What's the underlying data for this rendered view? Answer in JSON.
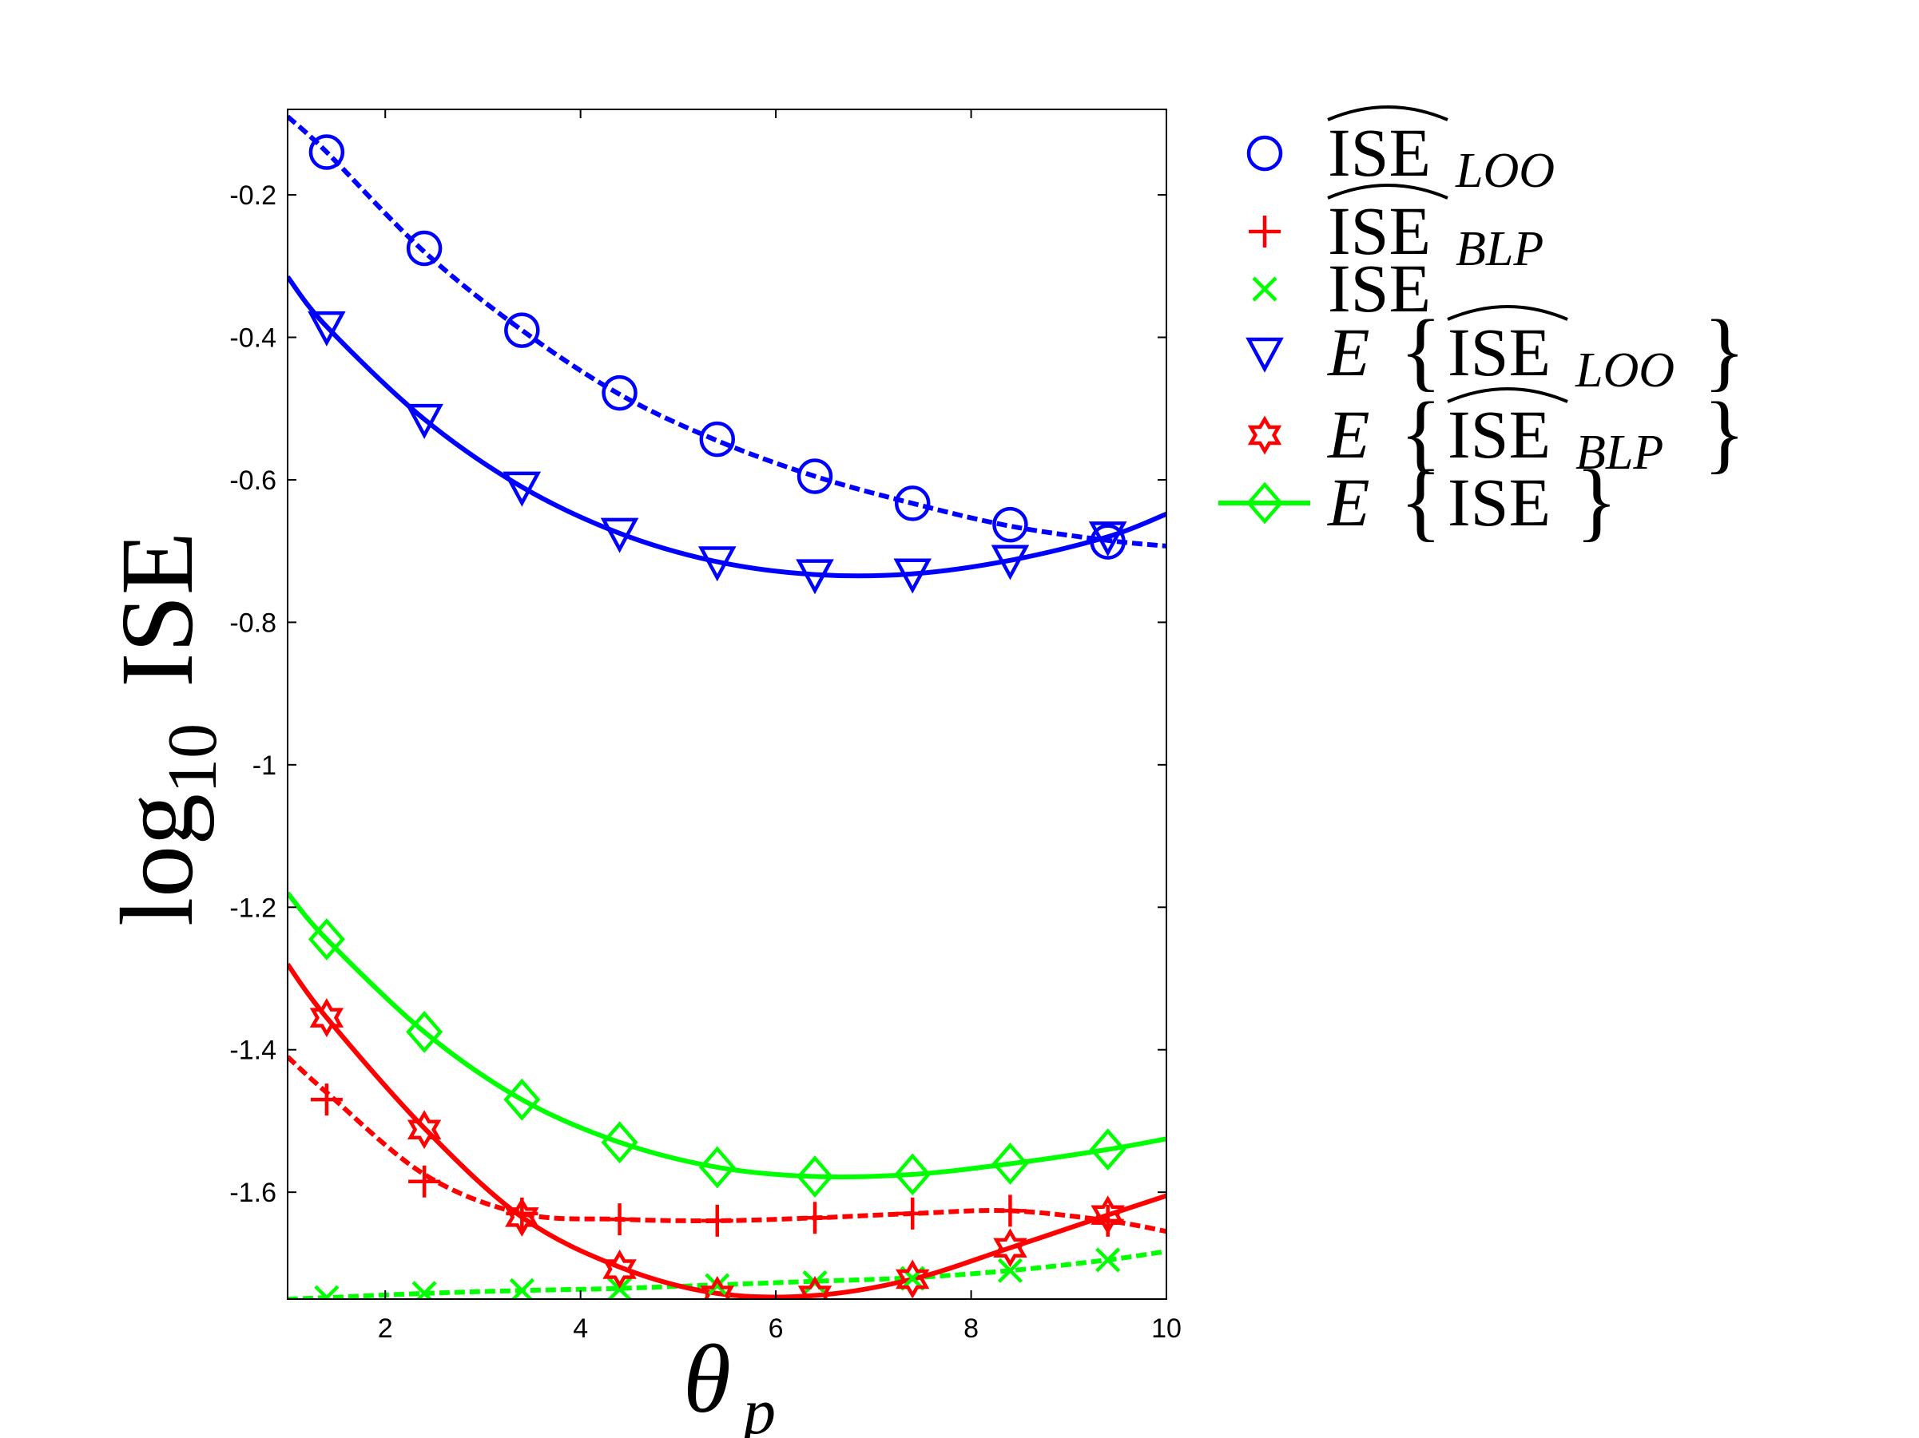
{
  "chart_data": {
    "type": "line",
    "xlabel": "θ",
    "xlabel_sub": "p",
    "ylabel_prefix": "log",
    "ylabel_sub": "10",
    "ylabel_main": "ISE",
    "xlim": [
      1,
      10
    ],
    "ylim": [
      -1.75,
      -0.08
    ],
    "xticks": [
      2,
      4,
      6,
      8,
      10
    ],
    "xtick_labels": [
      "2",
      "4",
      "6",
      "8",
      "10"
    ],
    "yticks": [
      -0.2,
      -0.4,
      -0.6,
      -0.8,
      -1,
      -1.2,
      -1.4,
      -1.6
    ],
    "ytick_labels": [
      "-0.2",
      "-0.4",
      "-0.6",
      "-0.8",
      "-1",
      "-1.2",
      "-1.4",
      "-1.6"
    ],
    "marker_x": [
      1.4,
      2.4,
      3.4,
      4.4,
      5.4,
      6.4,
      7.4,
      8.4,
      9.4
    ],
    "series": [
      {
        "name": "ISE_LOO_hat",
        "color": "#0000ff",
        "marker": "circle",
        "dash": true,
        "legend": {
          "prefix": "",
          "main": "ISE",
          "hat": true,
          "sub": "LOO",
          "brace": false
        },
        "curve": [
          [
            1,
            -0.09
          ],
          [
            1.4,
            -0.14
          ],
          [
            2.4,
            -0.28
          ],
          [
            3.4,
            -0.39
          ],
          [
            4.4,
            -0.48
          ],
          [
            5.4,
            -0.545
          ],
          [
            6.4,
            -0.595
          ],
          [
            7.4,
            -0.633
          ],
          [
            8.4,
            -0.665
          ],
          [
            9.4,
            -0.685
          ],
          [
            10,
            -0.693
          ]
        ],
        "values": [
          -0.14,
          -0.275,
          -0.39,
          -0.478,
          -0.543,
          -0.595,
          -0.633,
          -0.663,
          -0.687
        ]
      },
      {
        "name": "ISE_BLP_hat",
        "color": "#ff0000",
        "marker": "plus",
        "dash": true,
        "legend": {
          "prefix": "",
          "main": "ISE",
          "hat": true,
          "sub": "BLP",
          "brace": false
        },
        "curve": [
          [
            1,
            -1.41
          ],
          [
            1.4,
            -1.46
          ],
          [
            2.4,
            -1.575
          ],
          [
            3.4,
            -1.63
          ],
          [
            4.4,
            -1.638
          ],
          [
            5.4,
            -1.64
          ],
          [
            6.4,
            -1.636
          ],
          [
            7.4,
            -1.63
          ],
          [
            8.4,
            -1.626
          ],
          [
            9.4,
            -1.64
          ],
          [
            10,
            -1.655
          ]
        ],
        "values": [
          -1.47,
          -1.585,
          -1.63,
          -1.638,
          -1.64,
          -1.636,
          -1.63,
          -1.626,
          -1.64
        ]
      },
      {
        "name": "ISE",
        "color": "#00ff00",
        "marker": "x",
        "dash": true,
        "legend": {
          "prefix": "",
          "main": "ISE",
          "hat": false,
          "sub": "",
          "brace": false
        },
        "curve": [
          [
            1,
            -1.75
          ],
          [
            1.4,
            -1.748
          ],
          [
            2.4,
            -1.742
          ],
          [
            3.4,
            -1.738
          ],
          [
            4.4,
            -1.735
          ],
          [
            5.4,
            -1.73
          ],
          [
            6.4,
            -1.725
          ],
          [
            7.4,
            -1.72
          ],
          [
            8.4,
            -1.71
          ],
          [
            9.4,
            -1.695
          ],
          [
            10,
            -1.683
          ]
        ],
        "values": [
          -1.748,
          -1.742,
          -1.738,
          -1.736,
          -1.731,
          -1.727,
          -1.721,
          -1.71,
          -1.695
        ]
      },
      {
        "name": "E_ISE_LOO_hat",
        "color": "#0000ff",
        "marker": "triangle-down",
        "dash": false,
        "legend": {
          "prefix": "E",
          "main": "ISE",
          "hat": true,
          "sub": "LOO",
          "brace": true
        },
        "curve": [
          [
            1,
            -0.315
          ],
          [
            1.4,
            -0.385
          ],
          [
            2.4,
            -0.515
          ],
          [
            3.4,
            -0.61
          ],
          [
            4.4,
            -0.675
          ],
          [
            5.4,
            -0.715
          ],
          [
            6.4,
            -0.733
          ],
          [
            7.4,
            -0.732
          ],
          [
            8.4,
            -0.713
          ],
          [
            9.4,
            -0.68
          ],
          [
            10,
            -0.648
          ]
        ],
        "values": [
          -0.385,
          -0.515,
          -0.61,
          -0.675,
          -0.715,
          -0.733,
          -0.732,
          -0.713,
          -0.68
        ]
      },
      {
        "name": "E_ISE_BLP_hat",
        "color": "#ff0000",
        "marker": "hexagram",
        "dash": false,
        "legend": {
          "prefix": "E",
          "main": "ISE",
          "hat": true,
          "sub": "BLP",
          "brace": true
        },
        "curve": [
          [
            1,
            -1.28
          ],
          [
            1.4,
            -1.355
          ],
          [
            2.4,
            -1.51
          ],
          [
            3.4,
            -1.635
          ],
          [
            4.4,
            -1.705
          ],
          [
            5.4,
            -1.742
          ],
          [
            6.4,
            -1.745
          ],
          [
            7.4,
            -1.722
          ],
          [
            8.4,
            -1.678
          ],
          [
            9.4,
            -1.632
          ],
          [
            10,
            -1.605
          ]
        ],
        "values": [
          -1.355,
          -1.512,
          -1.635,
          -1.708,
          -1.745,
          -1.745,
          -1.722,
          -1.678,
          -1.632
        ]
      },
      {
        "name": "E_ISE",
        "color": "#00ff00",
        "marker": "diamond",
        "dash": false,
        "legend": {
          "prefix": "E",
          "main": "ISE",
          "hat": false,
          "sub": "",
          "brace": true
        },
        "curve": [
          [
            1,
            -1.18
          ],
          [
            1.4,
            -1.245
          ],
          [
            2.4,
            -1.375
          ],
          [
            3.4,
            -1.47
          ],
          [
            4.4,
            -1.53
          ],
          [
            5.4,
            -1.565
          ],
          [
            6.4,
            -1.578
          ],
          [
            7.4,
            -1.575
          ],
          [
            8.4,
            -1.56
          ],
          [
            9.4,
            -1.54
          ],
          [
            10,
            -1.525
          ]
        ],
        "values": [
          -1.245,
          -1.375,
          -1.47,
          -1.53,
          -1.565,
          -1.578,
          -1.575,
          -1.56,
          -1.54
        ]
      }
    ]
  }
}
